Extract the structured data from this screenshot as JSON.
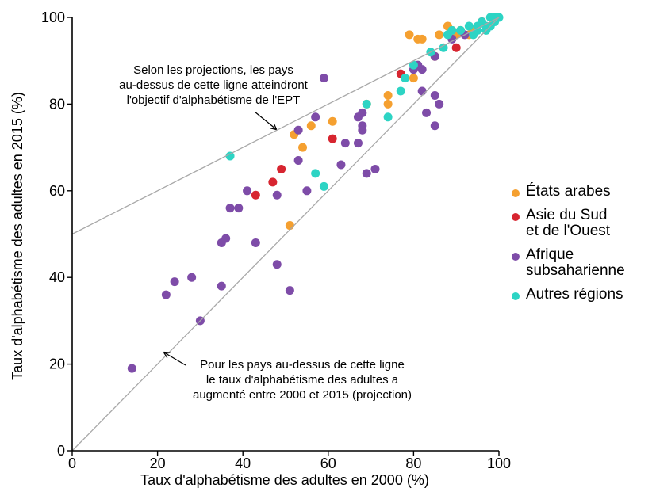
{
  "chart_data": {
    "type": "scatter",
    "xlabel": "Taux d'alphabétisme des adultes en 2000 (%)",
    "ylabel": "Taux d'alphabétisme des adultes en 2015 (%)",
    "xlim": [
      0,
      100
    ],
    "ylim": [
      0,
      100
    ],
    "xticks": [
      "0",
      "20",
      "40",
      "60",
      "80",
      "100"
    ],
    "yticks": [
      "0",
      "20",
      "40",
      "60",
      "80",
      "100"
    ],
    "grid": false,
    "legend_position": "right",
    "lines": [
      {
        "id": "efa",
        "from": [
          0,
          50
        ],
        "to": [
          100,
          100
        ]
      },
      {
        "id": "diag",
        "from": [
          0,
          0
        ],
        "to": [
          100,
          100
        ]
      }
    ],
    "annotations": [
      {
        "id": "efa",
        "lines": [
          "Selon les projections, les pays",
          "au-dessus de cette ligne atteindront",
          "l'objectif d'alphabétisme de l'EPT"
        ]
      },
      {
        "id": "diag",
        "lines": [
          "Pour les pays au-dessus de cette ligne",
          "le taux d'alphabétisme des adultes a",
          "augmenté entre 2000 et 2015 (projection)"
        ]
      }
    ],
    "series": [
      {
        "name": "États arabes",
        "color": "#F5A030",
        "points": [
          [
            79,
            96
          ],
          [
            81,
            95
          ],
          [
            82,
            95
          ],
          [
            85,
            91
          ],
          [
            86,
            96
          ],
          [
            88,
            98
          ],
          [
            89,
            97
          ],
          [
            90,
            96
          ],
          [
            91,
            97
          ],
          [
            93,
            96
          ],
          [
            94,
            97
          ],
          [
            80,
            86
          ],
          [
            74,
            80
          ],
          [
            74,
            82
          ],
          [
            69,
            80
          ],
          [
            61,
            76
          ],
          [
            56,
            75
          ],
          [
            52,
            73
          ],
          [
            54,
            70
          ],
          [
            51,
            52
          ]
        ]
      },
      {
        "name": "Asie du Sud\net de l'Ouest",
        "color": "#D72530",
        "points": [
          [
            96,
            99
          ],
          [
            90,
            93
          ],
          [
            77,
            87
          ],
          [
            61,
            72
          ],
          [
            49,
            65
          ],
          [
            47,
            62
          ],
          [
            43,
            59
          ]
        ]
      },
      {
        "name": "Afrique\nsubsaharienne",
        "color": "#7E4CA8",
        "points": [
          [
            14,
            19
          ],
          [
            22,
            36
          ],
          [
            24,
            39
          ],
          [
            28,
            40
          ],
          [
            30,
            30
          ],
          [
            35,
            38
          ],
          [
            35,
            48
          ],
          [
            36,
            49
          ],
          [
            37,
            56
          ],
          [
            39,
            56
          ],
          [
            43,
            48
          ],
          [
            41,
            60
          ],
          [
            48,
            59
          ],
          [
            48,
            43
          ],
          [
            51,
            37
          ],
          [
            55,
            60
          ],
          [
            53,
            67
          ],
          [
            53,
            74
          ],
          [
            57,
            77
          ],
          [
            59,
            86
          ],
          [
            63,
            66
          ],
          [
            64,
            71
          ],
          [
            67,
            71
          ],
          [
            67,
            77
          ],
          [
            68,
            78
          ],
          [
            68,
            75
          ],
          [
            68,
            74
          ],
          [
            69,
            64
          ],
          [
            71,
            65
          ],
          [
            80,
            88
          ],
          [
            81,
            89
          ],
          [
            82,
            88
          ],
          [
            82,
            83
          ],
          [
            83,
            78
          ],
          [
            85,
            82
          ],
          [
            86,
            80
          ],
          [
            85,
            75
          ],
          [
            85,
            91
          ],
          [
            89,
            95
          ],
          [
            92,
            96
          ]
        ]
      },
      {
        "name": "Autres régions",
        "color": "#2DD4C4",
        "points": [
          [
            37,
            68
          ],
          [
            57,
            64
          ],
          [
            59,
            61
          ],
          [
            69,
            80
          ],
          [
            74,
            77
          ],
          [
            77,
            83
          ],
          [
            78,
            86
          ],
          [
            80,
            89
          ],
          [
            84,
            92
          ],
          [
            87,
            93
          ],
          [
            88,
            96
          ],
          [
            89,
            97
          ],
          [
            91,
            97
          ],
          [
            93,
            98
          ],
          [
            94,
            96
          ],
          [
            95,
            98
          ],
          [
            96,
            99
          ],
          [
            97,
            98
          ],
          [
            98,
            98
          ],
          [
            98,
            100
          ],
          [
            99,
            100
          ],
          [
            99,
            99
          ],
          [
            100,
            100
          ],
          [
            97,
            97
          ],
          [
            95,
            97
          ]
        ]
      }
    ]
  }
}
